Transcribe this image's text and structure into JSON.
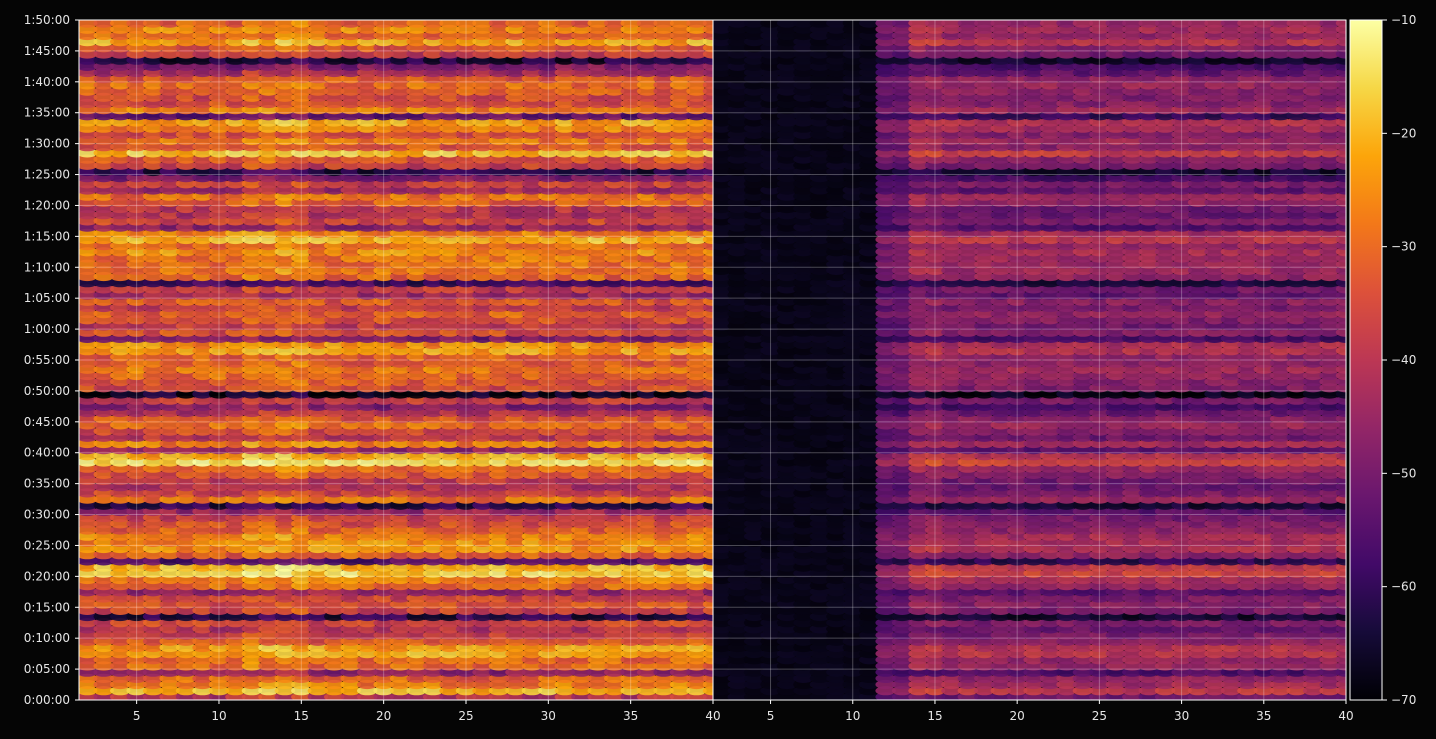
{
  "chart_data": [
    {
      "type": "heatmap",
      "title": "",
      "xlabel": "",
      "ylabel": "",
      "x": {
        "min": 1.5,
        "max": 40,
        "ticks": [
          5,
          10,
          15,
          20,
          25,
          30,
          35,
          40
        ]
      },
      "y": {
        "min_seconds": 0,
        "max_seconds": 6600,
        "ticks": [
          "0:00:00",
          "0:05:00",
          "0:10:00",
          "0:15:00",
          "0:20:00",
          "0:25:00",
          "0:30:00",
          "0:35:00",
          "0:40:00",
          "0:45:00",
          "0:50:00",
          "0:55:00",
          "1:00:00",
          "1:05:00",
          "1:10:00",
          "1:15:00",
          "1:20:00",
          "1:25:00",
          "1:30:00",
          "1:35:00",
          "1:40:00",
          "1:45:00",
          "1:50:00"
        ]
      },
      "grid": true,
      "colormap": "inferno",
      "value_range": [
        -70,
        -10
      ],
      "note_shading": "bright (-20 to -30) across all x"
    },
    {
      "type": "heatmap",
      "title": "",
      "xlabel": "",
      "ylabel": "",
      "x": {
        "min": 1.5,
        "max": 40,
        "ticks": [
          5,
          10,
          15,
          20,
          25,
          30,
          35,
          40
        ]
      },
      "y": {
        "min_seconds": 0,
        "max_seconds": 6600
      },
      "grid": true,
      "colormap": "inferno",
      "value_range": [
        -70,
        -10
      ],
      "note_shading": "near -70 for x < 12, darker purple (-45 to -65) for x > 12"
    }
  ],
  "colorbar": {
    "ticks": [
      "−10",
      "−20",
      "−30",
      "−40",
      "−50",
      "−60",
      "−70"
    ],
    "min": -70,
    "max": -10
  },
  "colors": {
    "background": "#050505",
    "axes": "#ffffff",
    "grid": "#ffffff",
    "text": "#e6e6e6"
  }
}
